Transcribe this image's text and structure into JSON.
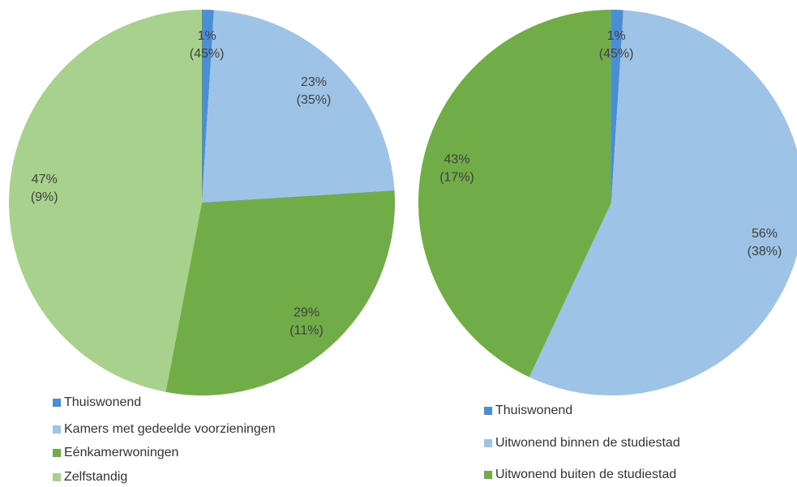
{
  "chart_data": [
    {
      "type": "pie",
      "categories": [
        "Thuiswonend",
        "Kamers met gedeelde voorzieningen",
        "Eénkamerwoningen",
        "Zelfstandig"
      ],
      "values": [
        1,
        23,
        29,
        47
      ],
      "value_labels": [
        "1%",
        "23%",
        "29%",
        "47%"
      ],
      "secondary_labels": [
        "(45%)",
        "(35%)",
        "(11%)",
        "(9%)"
      ],
      "colors": [
        "#4a8fd6",
        "#9dc3e6",
        "#70ad47",
        "#a9d18e"
      ]
    },
    {
      "type": "pie",
      "categories": [
        "Thuiswonend",
        "Uitwonend binnen de studiestad",
        "Uitwonend buiten de studiestad"
      ],
      "values": [
        1,
        56,
        43
      ],
      "value_labels": [
        "1%",
        "56%",
        "43%"
      ],
      "secondary_labels": [
        "(45%)",
        "(38%)",
        "(17%)"
      ],
      "colors": [
        "#4a8fd6",
        "#9dc3e6",
        "#70ad47"
      ]
    }
  ]
}
